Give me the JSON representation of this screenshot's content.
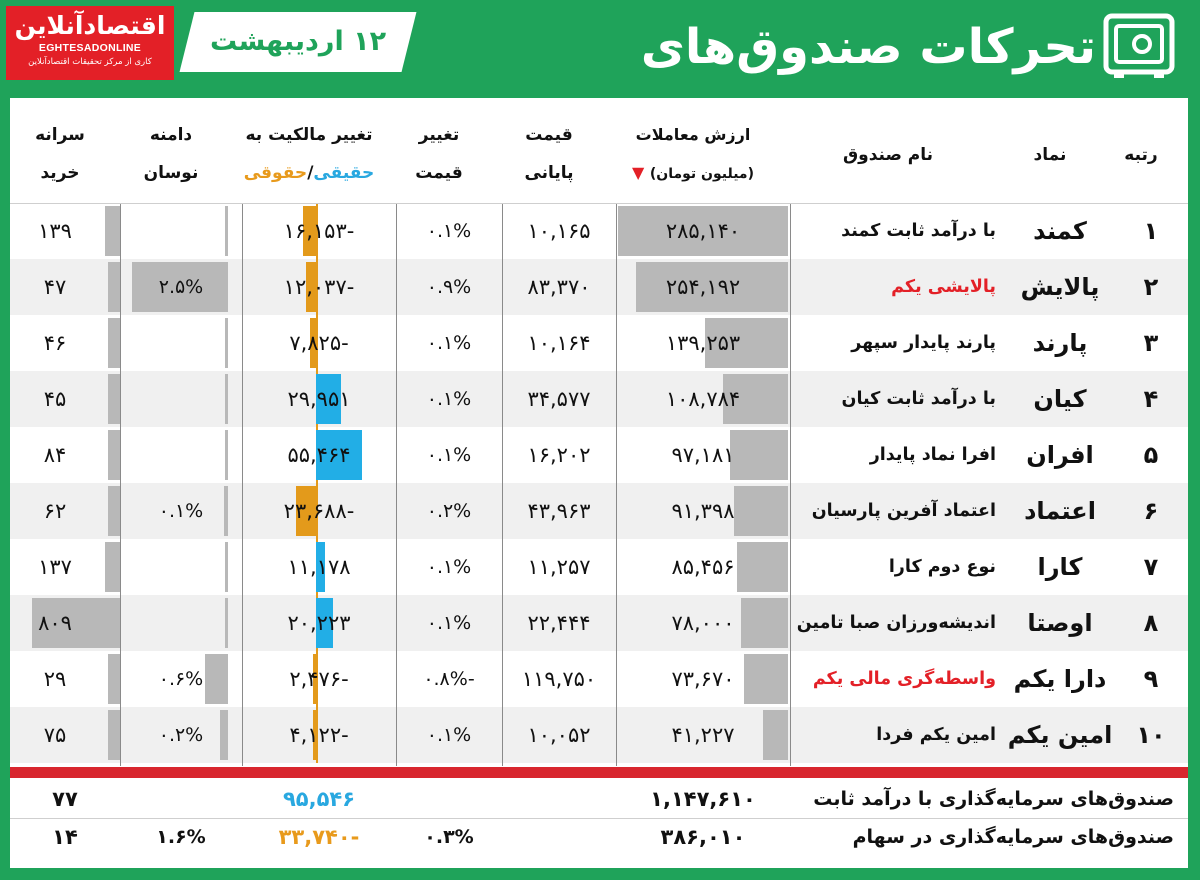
{
  "logo": {
    "fa": "اقتصادآنلاین",
    "en": "EGHTESADONLINE",
    "sub": "کاری از مرکز تحقیقات اقتصادآنلاین"
  },
  "date": "۱۲ اردیبهشت",
  "title": "تحرکات صندوق‌های معامله‌پذیر",
  "headers": {
    "rank": "رتبه",
    "symbol": "نماد",
    "name": "نام صندوق",
    "value_l1": "ارزش معاملات",
    "value_l2": "(میلیون تومان)",
    "price_l1": "قیمت",
    "price_l2": "پایانی",
    "chg_l1": "تغییر",
    "chg_l2": "قیمت",
    "own_l1": "تغییر مالکیت به",
    "own_blue": "حقیقی",
    "own_sep": "/",
    "own_orange": "حقوقی",
    "range_l1": "دامنه",
    "range_l2": "نوسان",
    "buy_l1": "سرانه",
    "buy_l2": "خرید"
  },
  "colors": {
    "green": "#1fa35a",
    "red": "#e32027",
    "blue": "#22aee6",
    "orange": "#e39a1b",
    "grey": "#b8b8b8"
  },
  "rows": [
    {
      "rank": "۱",
      "symbol": "کمند",
      "name": "با درآمد ثابت کمند",
      "name_red": false,
      "value": "۲۸۵,۱۴۰",
      "value_n": 285140,
      "price": "۱۰,۱۶۵",
      "chg": "۰.۱%",
      "own": "-۱۶,۱۵۳",
      "own_n": -16153,
      "range": "",
      "range_n": 0,
      "buy": "۱۳۹",
      "buy_n": 139
    },
    {
      "rank": "۲",
      "symbol": "پالایش",
      "name": "پالایشی یکم",
      "name_red": true,
      "value": "۲۵۴,۱۹۲",
      "value_n": 254192,
      "price": "۸۳,۳۷۰",
      "chg": "۰.۹%",
      "own": "-۱۲,۰۳۷",
      "own_n": -12037,
      "range": "۲.۵%",
      "range_n": 2.5,
      "buy": "۴۷",
      "buy_n": 47
    },
    {
      "rank": "۳",
      "symbol": "پارند",
      "name": "پارند پایدار سپهر",
      "name_red": false,
      "value": "۱۳۹,۲۵۳",
      "value_n": 139253,
      "price": "۱۰,۱۶۴",
      "chg": "۰.۱%",
      "own": "-۷,۸۲۵",
      "own_n": -7825,
      "range": "",
      "range_n": 0,
      "buy": "۴۶",
      "buy_n": 46
    },
    {
      "rank": "۴",
      "symbol": "کیان",
      "name": "با درآمد ثابت کیان",
      "name_red": false,
      "value": "۱۰۸,۷۸۴",
      "value_n": 108784,
      "price": "۳۴,۵۷۷",
      "chg": "۰.۱%",
      "own": "۲۹,۹۵۱",
      "own_n": 29951,
      "range": "",
      "range_n": 0,
      "buy": "۴۵",
      "buy_n": 45
    },
    {
      "rank": "۵",
      "symbol": "افران",
      "name": "افرا نماد پایدار",
      "name_red": false,
      "value": "۹۷,۱۸۱",
      "value_n": 97181,
      "price": "۱۶,۲۰۲",
      "chg": "۰.۱%",
      "own": "۵۵,۴۶۴",
      "own_n": 55464,
      "range": "",
      "range_n": 0,
      "buy": "۸۴",
      "buy_n": 84
    },
    {
      "rank": "۶",
      "symbol": "اعتماد",
      "name": "اعتماد آفرین پارسیان",
      "name_red": false,
      "value": "۹۱,۳۹۸",
      "value_n": 91398,
      "price": "۴۳,۹۶۳",
      "chg": "۰.۲%",
      "own": "-۲۳,۶۸۸",
      "own_n": -23688,
      "range": "۰.۱%",
      "range_n": 0.1,
      "buy": "۶۲",
      "buy_n": 62
    },
    {
      "rank": "۷",
      "symbol": "کارا",
      "name": "نوع دوم کارا",
      "name_red": false,
      "value": "۸۵,۴۵۶",
      "value_n": 85456,
      "price": "۱۱,۲۵۷",
      "chg": "۰.۱%",
      "own": "۱۱,۱۷۸",
      "own_n": 11178,
      "range": "",
      "range_n": 0,
      "buy": "۱۳۷",
      "buy_n": 137
    },
    {
      "rank": "۸",
      "symbol": "اوصتا",
      "name": "اندیشه‌ورزان صبا تامین",
      "name_red": false,
      "value": "۷۸,۰۰۰",
      "value_n": 78000,
      "price": "۲۲,۴۴۴",
      "chg": "۰.۱%",
      "own": "۲۰,۲۲۳",
      "own_n": 20223,
      "range": "",
      "range_n": 0,
      "buy": "۸۰۹",
      "buy_n": 809
    },
    {
      "rank": "۹",
      "symbol": "دارا یکم",
      "name": "واسطه‌گری مالی یکم",
      "name_red": true,
      "value": "۷۳,۶۷۰",
      "value_n": 73670,
      "price": "۱۱۹,۷۵۰",
      "chg": "-۰.۸%",
      "own": "-۲,۴۷۶",
      "own_n": -2476,
      "range": "۰.۶%",
      "range_n": 0.6,
      "buy": "۲۹",
      "buy_n": 29
    },
    {
      "rank": "۱۰",
      "symbol": "امین یکم",
      "name": "امین یکم فردا",
      "name_red": false,
      "value": "۴۱,۲۲۷",
      "value_n": 41227,
      "price": "۱۰,۰۵۲",
      "chg": "۰.۱%",
      "own": "-۴,۱۲۲",
      "own_n": -4122,
      "range": "۰.۲%",
      "range_n": 0.2,
      "buy": "۷۵",
      "buy_n": 75
    }
  ],
  "summary": [
    {
      "label": "صندوق‌های سرمایه‌گذاری با درآمد ثابت",
      "value": "۱,۱۴۷,۶۱۰",
      "own": "۹۵,۵۴۶",
      "own_color": "#29a8e0",
      "chg": "",
      "range": "",
      "buy": "۷۷"
    },
    {
      "label": "صندوق‌های سرمایه‌گذاری در سهام",
      "value": "۳۸۶,۰۱۰",
      "own": "-۳۳,۷۴۰",
      "own_color": "#e89a1c",
      "chg": "۰.۳%",
      "range": "۱.۶%",
      "buy": "۱۴"
    }
  ]
}
